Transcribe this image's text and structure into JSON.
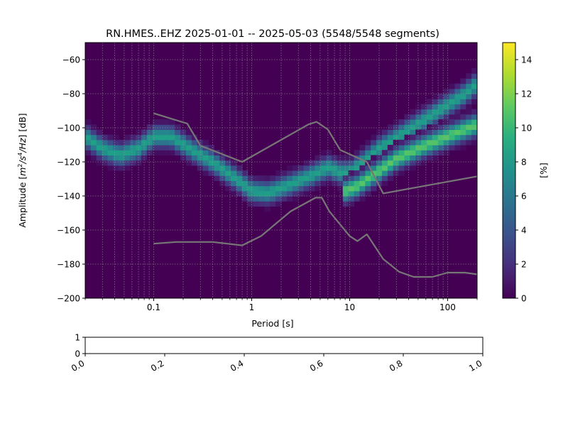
{
  "chart_data": [
    {
      "type": "heatmap",
      "title": "RN.HMES..EHZ   2025-01-01 -- 2025-05-03  (5548/5548 segments)",
      "xlabel": "Period [s]",
      "ylabel_parts": [
        "Amplitude [",
        "m",
        "2",
        "/",
        "s",
        "4",
        "/",
        "Hz",
        "] [dB]"
      ],
      "x_scale": "log",
      "xlim": [
        0.02,
        200
      ],
      "ylim": [
        -200,
        -50
      ],
      "x_ticks": [
        {
          "value": 0.1,
          "label": "0.1"
        },
        {
          "value": 1,
          "label": "1"
        },
        {
          "value": 10,
          "label": "10"
        },
        {
          "value": 100,
          "label": "100"
        }
      ],
      "y_ticks": [
        {
          "value": -60,
          "label": "−60"
        },
        {
          "value": -80,
          "label": "−80"
        },
        {
          "value": -100,
          "label": "−100"
        },
        {
          "value": -120,
          "label": "−120"
        },
        {
          "value": -140,
          "label": "−140"
        },
        {
          "value": -160,
          "label": "−160"
        },
        {
          "value": -180,
          "label": "−180"
        },
        {
          "value": -200,
          "label": "−200"
        }
      ],
      "grid": true,
      "colormap": "viridis",
      "background_color": "#440154",
      "colorbar": {
        "label": "[%]",
        "range": [
          0,
          15
        ],
        "ticks": [
          {
            "value": 0,
            "label": "0"
          },
          {
            "value": 2,
            "label": "2"
          },
          {
            "value": 4,
            "label": "4"
          },
          {
            "value": 6,
            "label": "6"
          },
          {
            "value": 8,
            "label": "8"
          },
          {
            "value": 10,
            "label": "10"
          },
          {
            "value": 12,
            "label": "12"
          },
          {
            "value": 14,
            "label": "14"
          }
        ]
      },
      "density_bands": [
        {
          "points": [
            [
              0.02,
              -105
            ],
            [
              0.03,
              -112
            ],
            [
              0.045,
              -116
            ],
            [
              0.07,
              -112
            ],
            [
              0.1,
              -105
            ],
            [
              0.15,
              -105
            ],
            [
              0.25,
              -113
            ],
            [
              0.4,
              -120
            ],
            [
              0.7,
              -130
            ],
            [
              1,
              -137
            ],
            [
              1.5,
              -138
            ],
            [
              2.5,
              -133
            ],
            [
              4,
              -128
            ],
            [
              6,
              -123
            ],
            [
              8,
              -126
            ],
            [
              10,
              -126
            ],
            [
              13,
              -121
            ],
            [
              20,
              -112
            ],
            [
              40,
              -101
            ],
            [
              80,
              -90
            ],
            [
              150,
              -80
            ],
            [
              200,
              -74
            ]
          ],
          "peak": 8.5
        },
        {
          "points": [
            [
              9,
              -137
            ],
            [
              12,
              -134
            ],
            [
              18,
              -127
            ],
            [
              30,
              -118
            ],
            [
              60,
              -110
            ],
            [
              120,
              -103
            ],
            [
              200,
              -98
            ]
          ],
          "peak": 11
        }
      ],
      "reference_curves": [
        {
          "name": "upper",
          "color": "#777777",
          "points": [
            [
              0.1,
              -91.5
            ],
            [
              0.22,
              -97.5
            ],
            [
              0.3,
              -110.5
            ],
            [
              0.8,
              -120
            ],
            [
              3.8,
              -98
            ],
            [
              4.6,
              -96.5
            ],
            [
              6,
              -101
            ],
            [
              8,
              -113
            ],
            [
              15,
              -120
            ],
            [
              22,
              -138.5
            ],
            [
              200,
              -128.5
            ]
          ]
        },
        {
          "name": "lower",
          "color": "#777777",
          "points": [
            [
              0.1,
              -168
            ],
            [
              0.17,
              -167
            ],
            [
              0.4,
              -167
            ],
            [
              0.8,
              -169
            ],
            [
              1.25,
              -163.5
            ],
            [
              2.5,
              -149
            ],
            [
              4.5,
              -141
            ],
            [
              5.2,
              -141
            ],
            [
              6.2,
              -149
            ],
            [
              10,
              -163.5
            ],
            [
              12,
              -166.5
            ],
            [
              15,
              -162.5
            ],
            [
              22,
              -177
            ],
            [
              32,
              -184.5
            ],
            [
              45,
              -187.5
            ],
            [
              70,
              -187.5
            ],
            [
              100,
              -185
            ],
            [
              150,
              -185
            ],
            [
              200,
              -186
            ]
          ]
        }
      ]
    },
    {
      "type": "scatter",
      "title": "",
      "xlim": [
        0,
        1
      ],
      "ylim": [
        0,
        1
      ],
      "x_ticks": [
        {
          "value": 0.0,
          "label": "0.0"
        },
        {
          "value": 0.2,
          "label": "0.2"
        },
        {
          "value": 0.4,
          "label": "0.4"
        },
        {
          "value": 0.6,
          "label": "0.6"
        },
        {
          "value": 0.8,
          "label": "0.8"
        },
        {
          "value": 1.0,
          "label": "1.0"
        }
      ],
      "y_ticks": [
        {
          "value": 0,
          "label": "0"
        },
        {
          "value": 1,
          "label": "1"
        }
      ],
      "x_tick_rotation_deg": 30,
      "series": []
    }
  ]
}
